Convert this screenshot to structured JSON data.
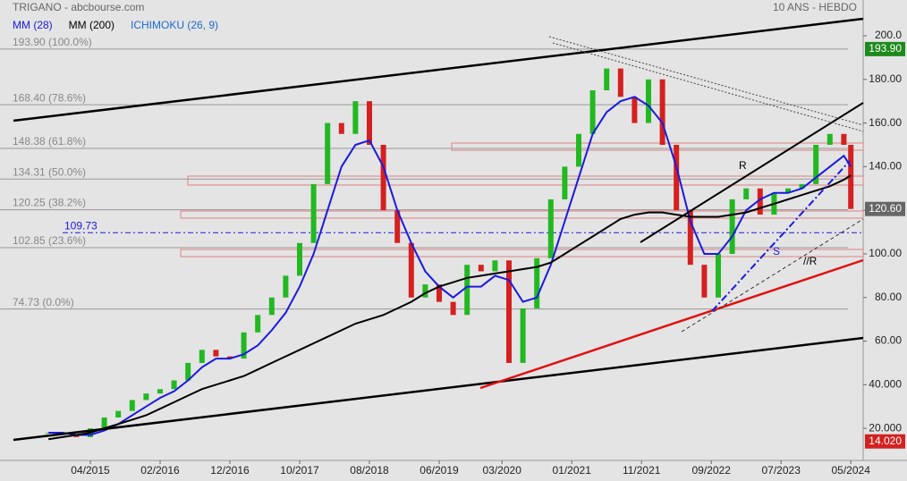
{
  "chart_data": {
    "type": "candle",
    "title": "TRIGANO - abcbourse.com",
    "subtitle": "10 ANS - HEBDO",
    "x": [
      "2014-10",
      "2014-12",
      "2015-02",
      "2015-04",
      "2015-06",
      "2015-08",
      "2015-10",
      "2015-12",
      "2016-02",
      "2016-04",
      "2016-06",
      "2016-08",
      "2016-10",
      "2016-12",
      "2017-02",
      "2017-04",
      "2017-06",
      "2017-08",
      "2017-10",
      "2017-12",
      "2018-02",
      "2018-04",
      "2018-06",
      "2018-08",
      "2018-10",
      "2018-12",
      "2019-02",
      "2019-04",
      "2019-06",
      "2019-08",
      "2019-10",
      "2019-12",
      "2020-02",
      "2020-04",
      "2020-06",
      "2020-08",
      "2020-10",
      "2020-12",
      "2021-02",
      "2021-04",
      "2021-06",
      "2021-08",
      "2021-10",
      "2021-12",
      "2022-02",
      "2022-04",
      "2022-06",
      "2022-08",
      "2022-10",
      "2022-12",
      "2023-02",
      "2023-04",
      "2023-06",
      "2023-08",
      "2023-10",
      "2023-12",
      "2024-02",
      "2024-04",
      "2024-05"
    ],
    "values": [
      18,
      17,
      16,
      20,
      25,
      28,
      33,
      36,
      38,
      42,
      50,
      56,
      53,
      52,
      64,
      72,
      80,
      90,
      105,
      132,
      160,
      155,
      170,
      150,
      120,
      105,
      80,
      86,
      78,
      72,
      95,
      92,
      97,
      50,
      75,
      98,
      125,
      140,
      155,
      175,
      185,
      172,
      160,
      180,
      150,
      120,
      95,
      80,
      100,
      125,
      130,
      118,
      128,
      130,
      132,
      150,
      155,
      150,
      120.6
    ],
    "up_color": "#22b822",
    "down_color": "#d42020",
    "series": [
      {
        "name": "MM (28)",
        "color": "#1a1ae0",
        "values": [
          18,
          18,
          17,
          17,
          19,
          22,
          26,
          30,
          34,
          37,
          42,
          48,
          52,
          52,
          54,
          58,
          65,
          73,
          85,
          100,
          120,
          140,
          150,
          152,
          140,
          120,
          105,
          92,
          85,
          80,
          85,
          85,
          90,
          88,
          78,
          80,
          95,
          115,
          135,
          155,
          165,
          170,
          172,
          168,
          160,
          140,
          115,
          100,
          100,
          108,
          120,
          125,
          128,
          128,
          130,
          135,
          140,
          145,
          140
        ]
      },
      {
        "name": "MM (200)",
        "color": "#000000",
        "values": [
          15,
          16,
          17,
          18,
          20,
          22,
          24,
          26,
          29,
          32,
          35,
          38,
          40,
          42,
          44,
          47,
          50,
          53,
          56,
          59,
          62,
          65,
          68,
          70,
          72,
          75,
          78,
          82,
          85,
          87,
          89,
          90,
          91,
          92,
          93,
          94,
          96,
          100,
          104,
          108,
          112,
          116,
          118,
          119,
          119,
          118,
          117,
          117,
          117,
          118,
          119,
          121,
          123,
          125,
          127,
          129,
          131,
          134,
          136
        ]
      }
    ],
    "extra_legend": {
      "text": "ICHIMOKU (26, 9)",
      "color": "#1a6ad0"
    },
    "ylim": [
      5.3,
      216.4
    ],
    "yticks": [
      {
        "value": 20,
        "label": "20.000"
      },
      {
        "value": 40,
        "label": "40.000"
      },
      {
        "value": 60,
        "label": "60.00"
      },
      {
        "value": 80,
        "label": "80.00"
      },
      {
        "value": 100,
        "label": "100.00"
      },
      {
        "value": 120,
        "label": "120.00"
      },
      {
        "value": 140,
        "label": "140.00"
      },
      {
        "value": 160,
        "label": "160.00"
      },
      {
        "value": 180,
        "label": "180.00"
      },
      {
        "value": 200,
        "label": "200.0"
      }
    ],
    "xticks": [
      {
        "value": "2015-04",
        "label": "04/2015"
      },
      {
        "value": "2016-02",
        "label": "02/2016"
      },
      {
        "value": "2016-12",
        "label": "12/2016"
      },
      {
        "value": "2017-10",
        "label": "10/2017"
      },
      {
        "value": "2018-08",
        "label": "08/2018"
      },
      {
        "value": "2019-06",
        "label": "06/2019"
      },
      {
        "value": "2020-03",
        "label": "03/2020"
      },
      {
        "value": "2021-01",
        "label": "01/2021"
      },
      {
        "value": "2021-11",
        "label": "11/2021"
      },
      {
        "value": "2022-09",
        "label": "09/2022"
      },
      {
        "value": "2023-07",
        "label": "07/2023"
      },
      {
        "value": "2024-05",
        "label": "05/2024"
      }
    ],
    "fib_levels": [
      {
        "value": 193.9,
        "label": "193.90  (100.0%)"
      },
      {
        "value": 168.4,
        "label": "168.40  (78.6%)"
      },
      {
        "value": 148.38,
        "label": "148.38  (61.8%)"
      },
      {
        "value": 134.31,
        "label": "134.31  (50.0%)"
      },
      {
        "value": 120.25,
        "label": "120.25  (38.2%)"
      },
      {
        "value": 102.85,
        "label": "102.85  (23.6%)"
      },
      {
        "value": 74.73,
        "label": "74.73  (0.0%)"
      }
    ],
    "support_line": {
      "value": 109.73,
      "label": "109.73"
    },
    "price_tags": [
      {
        "value": 193.9,
        "label": "193.90",
        "color": "#1e8a1e"
      },
      {
        "value": 120.6,
        "label": "120.60",
        "color": "#666666"
      },
      {
        "value": 14.02,
        "label": "14.020",
        "color": "#d42020"
      }
    ],
    "annotations": [
      "R",
      "S",
      "//R"
    ]
  }
}
